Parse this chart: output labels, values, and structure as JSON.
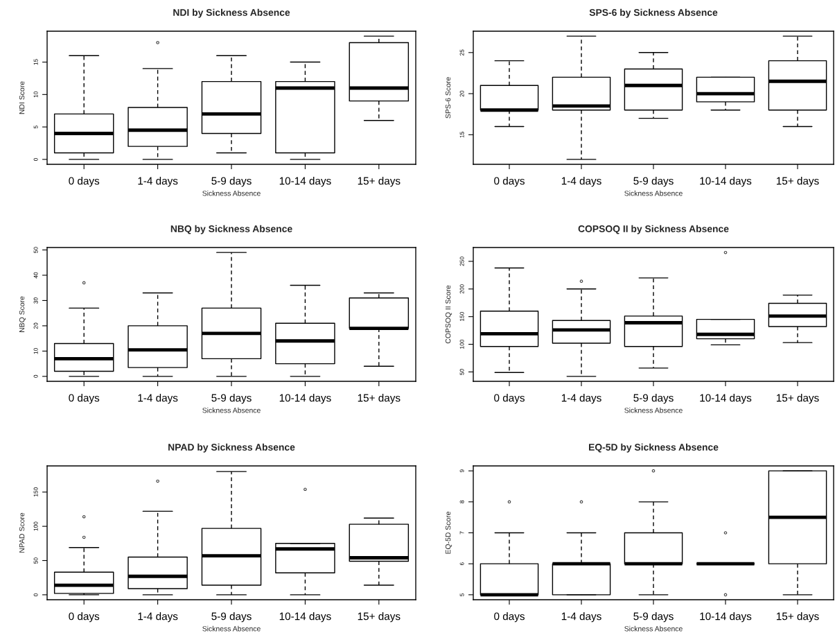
{
  "chart_data": [
    {
      "type": "box",
      "title": "NDI by Sickness Absence",
      "xlabel": "Sickness Absence",
      "ylabel": "NDI Score",
      "categories": [
        "0 days",
        "1-4 days",
        "5-9 days",
        "10-14 days",
        "15+ days"
      ],
      "ylim": [
        -0.76,
        19.76
      ],
      "yticks": [
        0,
        5,
        10,
        15
      ],
      "boxes": [
        {
          "low": 0,
          "q1": 1,
          "median": 4,
          "q3": 7,
          "high": 16
        },
        {
          "low": 0,
          "q1": 2,
          "median": 4.5,
          "q3": 8,
          "high": 14,
          "outliers": [
            18
          ]
        },
        {
          "low": 1,
          "q1": 4,
          "median": 7,
          "q3": 12,
          "high": 16
        },
        {
          "low": 0,
          "q1": 1,
          "median": 11,
          "q3": 12,
          "high": 15
        },
        {
          "low": 6,
          "q1": 9,
          "median": 11,
          "q3": 18,
          "high": 19
        }
      ]
    },
    {
      "type": "box",
      "title": "SPS-6 by Sickness Absence",
      "xlabel": "Sickness Absence",
      "ylabel": "SPS-6 Score",
      "categories": [
        "0 days",
        "1-4 days",
        "5-9 days",
        "10-14 days",
        "15+ days"
      ],
      "ylim": [
        11.4,
        27.6
      ],
      "yticks": [
        15,
        20,
        25
      ],
      "boxes": [
        {
          "low": 16,
          "q1": 18,
          "median": 18,
          "q3": 21,
          "high": 24
        },
        {
          "low": 12,
          "q1": 18,
          "median": 18.5,
          "q3": 22,
          "high": 27
        },
        {
          "low": 17,
          "q1": 18,
          "median": 21,
          "q3": 23,
          "high": 25
        },
        {
          "low": 18,
          "q1": 19,
          "median": 20,
          "q3": 22,
          "high": 22
        },
        {
          "low": 16,
          "q1": 18,
          "median": 21.5,
          "q3": 24,
          "high": 27
        }
      ]
    },
    {
      "type": "box",
      "title": "NBQ by Sickness Absence",
      "xlabel": "Sickness Absence",
      "ylabel": "NBQ Score",
      "categories": [
        "0 days",
        "1-4 days",
        "5-9 days",
        "10-14 days",
        "15+ days"
      ],
      "ylim": [
        -1.96,
        50.96
      ],
      "yticks": [
        0,
        10,
        20,
        30,
        40,
        50
      ],
      "boxes": [
        {
          "low": 0,
          "q1": 2,
          "median": 7,
          "q3": 13,
          "high": 27,
          "outliers": [
            37
          ]
        },
        {
          "low": 0,
          "q1": 3.5,
          "median": 10.5,
          "q3": 20,
          "high": 33
        },
        {
          "low": 0,
          "q1": 7,
          "median": 17,
          "q3": 27,
          "high": 49
        },
        {
          "low": 0,
          "q1": 5,
          "median": 14,
          "q3": 21,
          "high": 36
        },
        {
          "low": 4,
          "q1": 19,
          "median": 19,
          "q3": 31,
          "high": 33
        }
      ]
    },
    {
      "type": "box",
      "title": "COPSOQ II by Sickness Absence",
      "xlabel": "Sickness Absence",
      "ylabel": "COPSOQ II Score",
      "categories": [
        "0 days",
        "1-4 days",
        "5-9 days",
        "10-14 days",
        "15+ days"
      ],
      "ylim": [
        33,
        275
      ],
      "yticks": [
        50,
        100,
        150,
        200,
        250
      ],
      "boxes": [
        {
          "low": 49,
          "q1": 96,
          "median": 119,
          "q3": 160,
          "high": 238
        },
        {
          "low": 42,
          "q1": 102,
          "median": 126,
          "q3": 143,
          "high": 200,
          "outliers": [
            214
          ]
        },
        {
          "low": 57,
          "q1": 96,
          "median": 139,
          "q3": 151,
          "high": 220
        },
        {
          "low": 99,
          "q1": 110,
          "median": 118,
          "q3": 145,
          "high": 145,
          "outliers": [
            266
          ]
        },
        {
          "low": 103,
          "q1": 132,
          "median": 151,
          "q3": 174,
          "high": 189
        }
      ]
    },
    {
      "type": "box",
      "title": "NPAD by Sickness Absence",
      "xlabel": "Sickness Absence",
      "ylabel": "NPAD Score",
      "categories": [
        "0 days",
        "1-4 days",
        "5-9 days",
        "10-14 days",
        "15+ days"
      ],
      "ylim": [
        -7.2,
        188.2
      ],
      "yticks": [
        0,
        50,
        100,
        150
      ],
      "boxes": [
        {
          "low": 0,
          "q1": 2,
          "median": 14,
          "q3": 33,
          "high": 69,
          "outliers": [
            84,
            114
          ]
        },
        {
          "low": 0,
          "q1": 9,
          "median": 27,
          "q3": 55,
          "high": 122,
          "outliers": [
            166
          ]
        },
        {
          "low": 0,
          "q1": 14,
          "median": 57,
          "q3": 97,
          "high": 180
        },
        {
          "low": 0,
          "q1": 32,
          "median": 67,
          "q3": 75,
          "high": 75,
          "outliers": [
            154
          ]
        },
        {
          "low": 14,
          "q1": 49,
          "median": 54,
          "q3": 103,
          "high": 112
        }
      ]
    },
    {
      "type": "box",
      "title": "EQ-5D by Sickness Absence",
      "xlabel": "Sickness Absence",
      "ylabel": "EQ-5D Score",
      "categories": [
        "0 days",
        "1-4 days",
        "5-9 days",
        "10-14 days",
        "15+ days"
      ],
      "ylim": [
        4.84,
        9.16
      ],
      "yticks": [
        5,
        6,
        7,
        8,
        9
      ],
      "boxes": [
        {
          "low": 5,
          "q1": 5,
          "median": 5,
          "q3": 6,
          "high": 7,
          "outliers": [
            8
          ]
        },
        {
          "low": 5,
          "q1": 5,
          "median": 6,
          "q3": 6,
          "high": 7,
          "outliers": [
            8
          ]
        },
        {
          "low": 5,
          "q1": 6,
          "median": 6,
          "q3": 7,
          "high": 8,
          "outliers": [
            9
          ]
        },
        {
          "low": 6,
          "q1": 6,
          "median": 6,
          "q3": 6,
          "high": 6,
          "outliers": [
            5,
            7
          ]
        },
        {
          "low": 5,
          "q1": 6,
          "median": 7.5,
          "q3": 9,
          "high": 9
        }
      ]
    }
  ]
}
